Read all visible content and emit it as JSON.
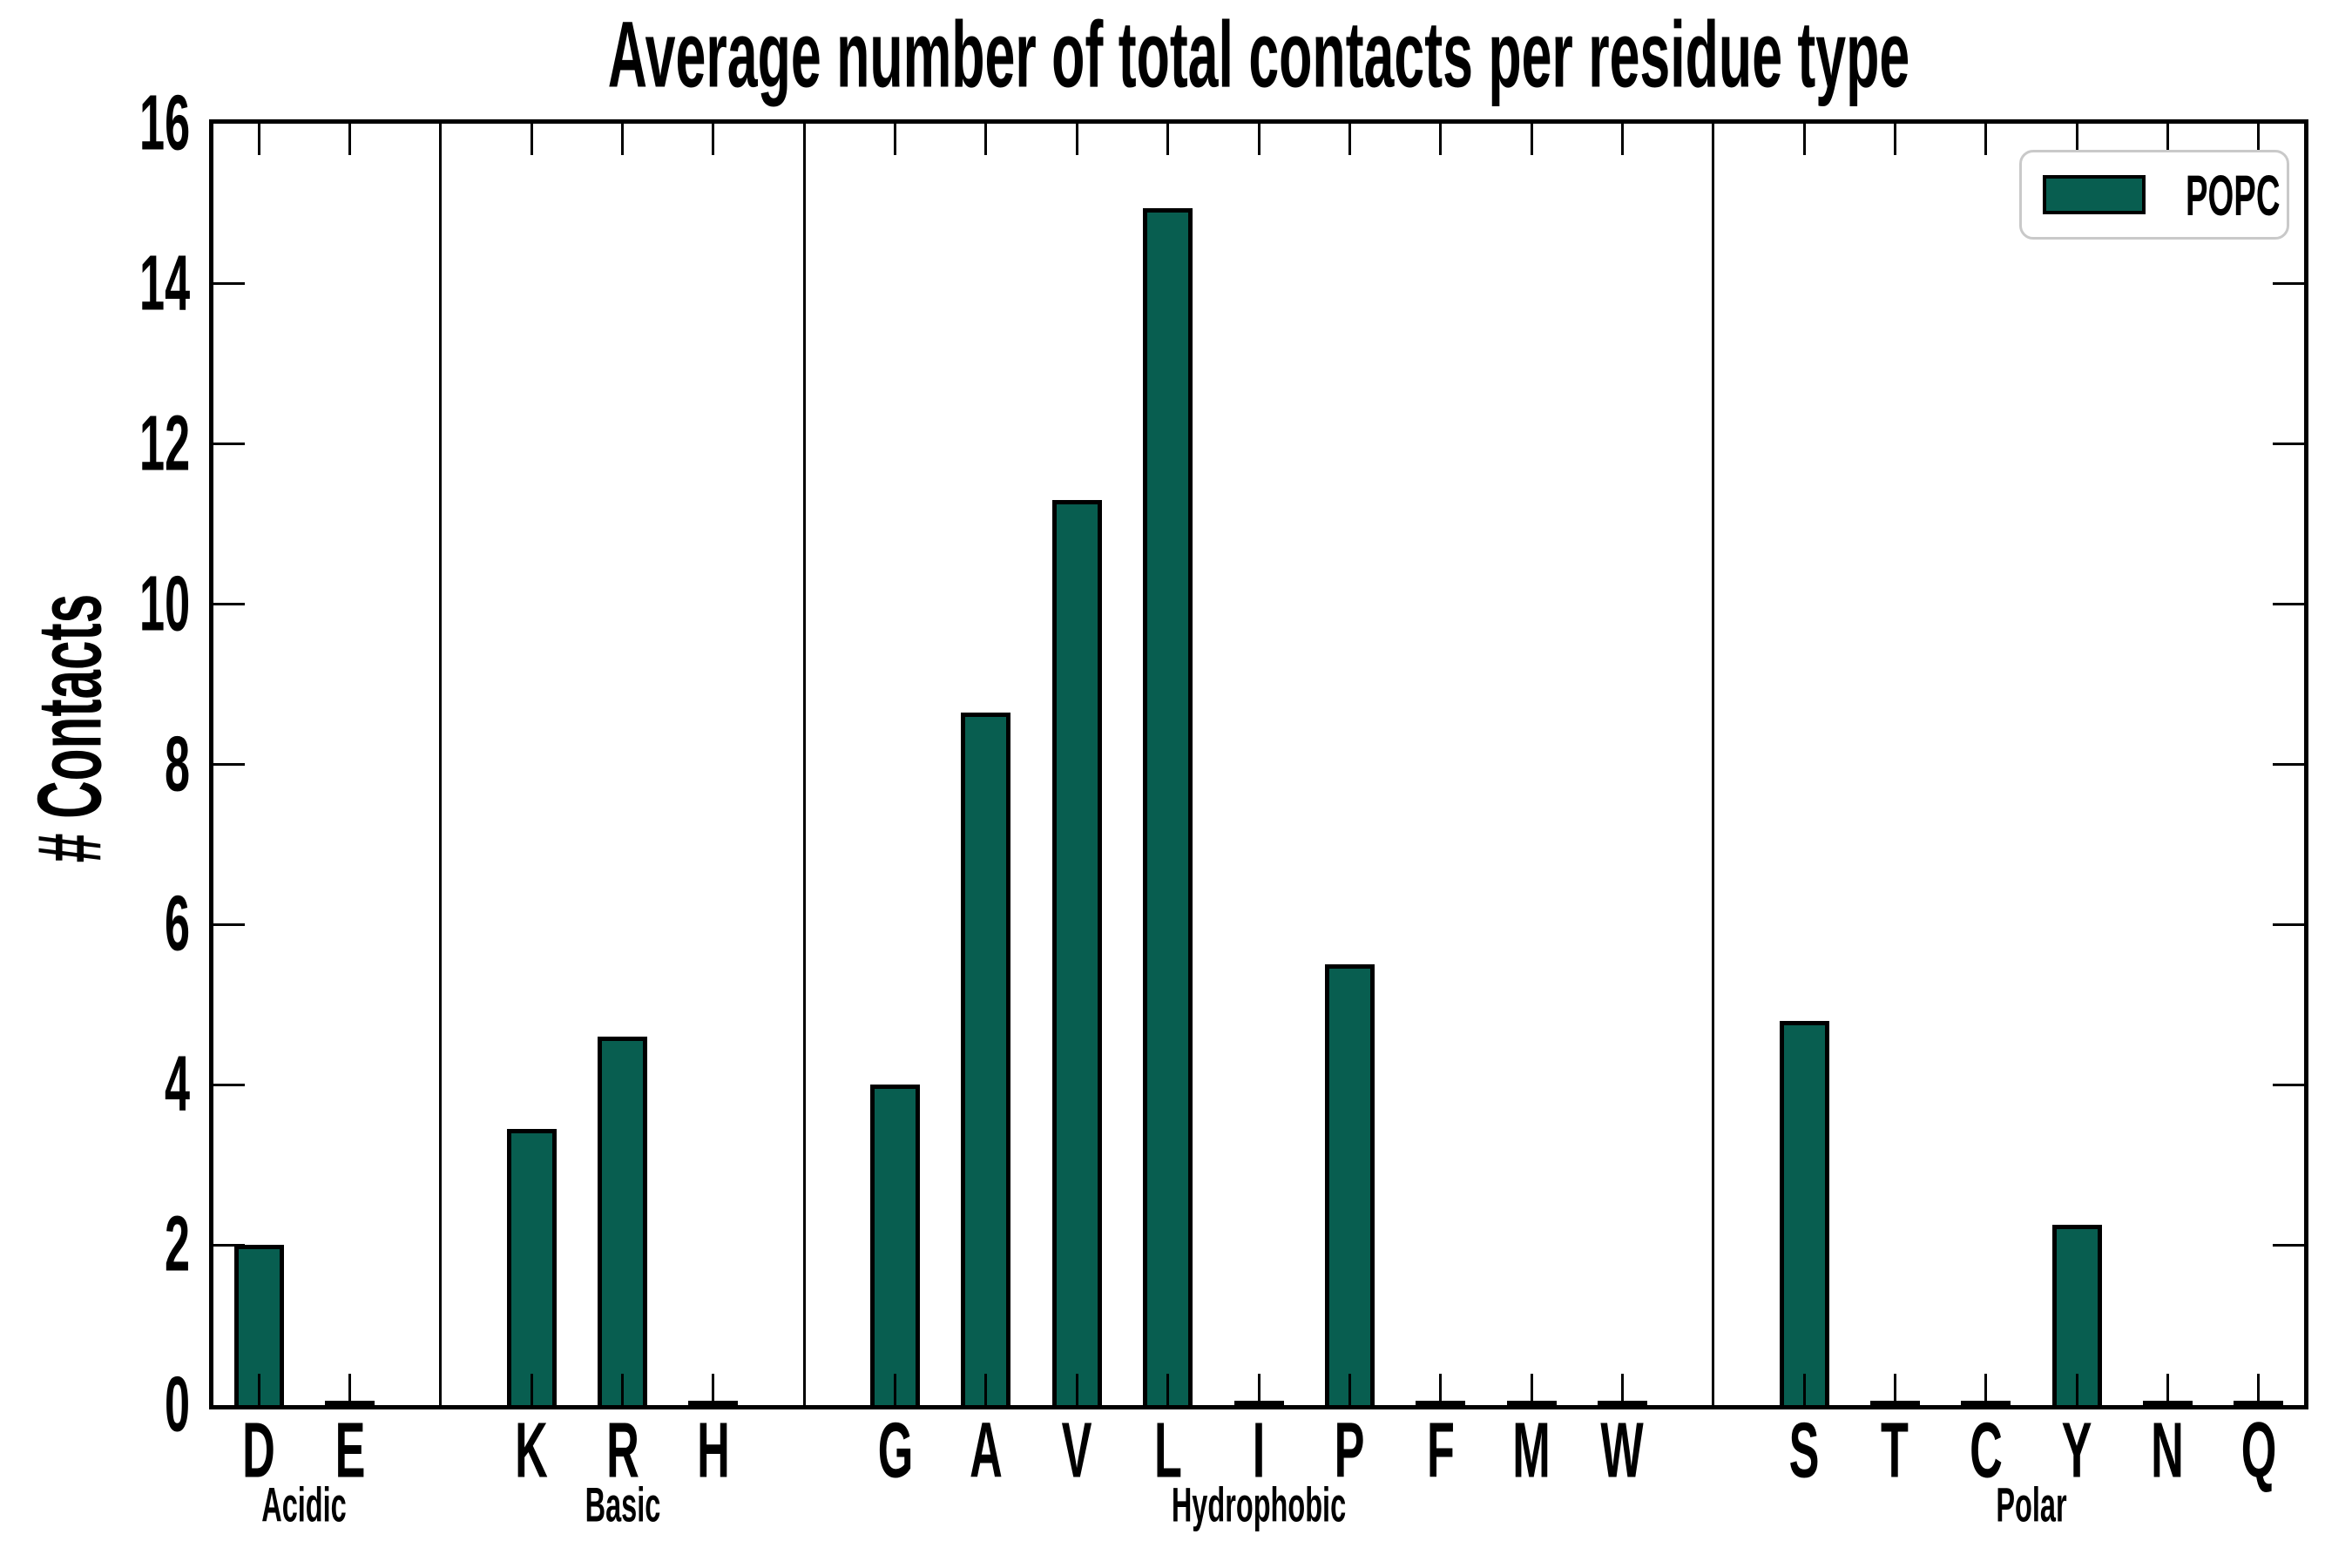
{
  "figure": {
    "background": "#ffffff"
  },
  "chart_data": {
    "type": "bar",
    "title": "Average number of total contacts per residue type",
    "ylabel": "# Contacts",
    "xlabel": "",
    "ylim": [
      0,
      16
    ],
    "yticks": [
      0,
      2,
      4,
      6,
      8,
      10,
      12,
      14,
      16
    ],
    "grid": false,
    "legend": {
      "label": "POPC",
      "position": "upper-right"
    },
    "colors": {
      "bar_fill": "#085e50",
      "bar_edge": "#000000",
      "axis": "#000000",
      "legend_border": "#c9c9c9",
      "text": "#000000"
    },
    "layout_hints": {
      "group_separators": true,
      "ticks_direction": "in",
      "ticks_all_sides": true,
      "gap_slot_between_groups": 1
    },
    "groups": [
      {
        "name": "Acidic",
        "categories": [
          "D",
          "E"
        ],
        "values": [
          2.0,
          0.05
        ]
      },
      {
        "name": "Basic",
        "categories": [
          "K",
          "R",
          "H"
        ],
        "values": [
          3.45,
          4.6,
          0.05
        ]
      },
      {
        "name": "Hydrophobic",
        "categories": [
          "G",
          "A",
          "V",
          "L",
          "I",
          "P",
          "F",
          "M",
          "W"
        ],
        "values": [
          4.0,
          8.65,
          11.3,
          14.95,
          0.03,
          5.5,
          0.05,
          0.05,
          0.05
        ]
      },
      {
        "name": "Polar",
        "categories": [
          "S",
          "T",
          "C",
          "Y",
          "N",
          "Q"
        ],
        "values": [
          4.8,
          0.05,
          0.05,
          2.25,
          0.05,
          0.05
        ]
      }
    ]
  }
}
